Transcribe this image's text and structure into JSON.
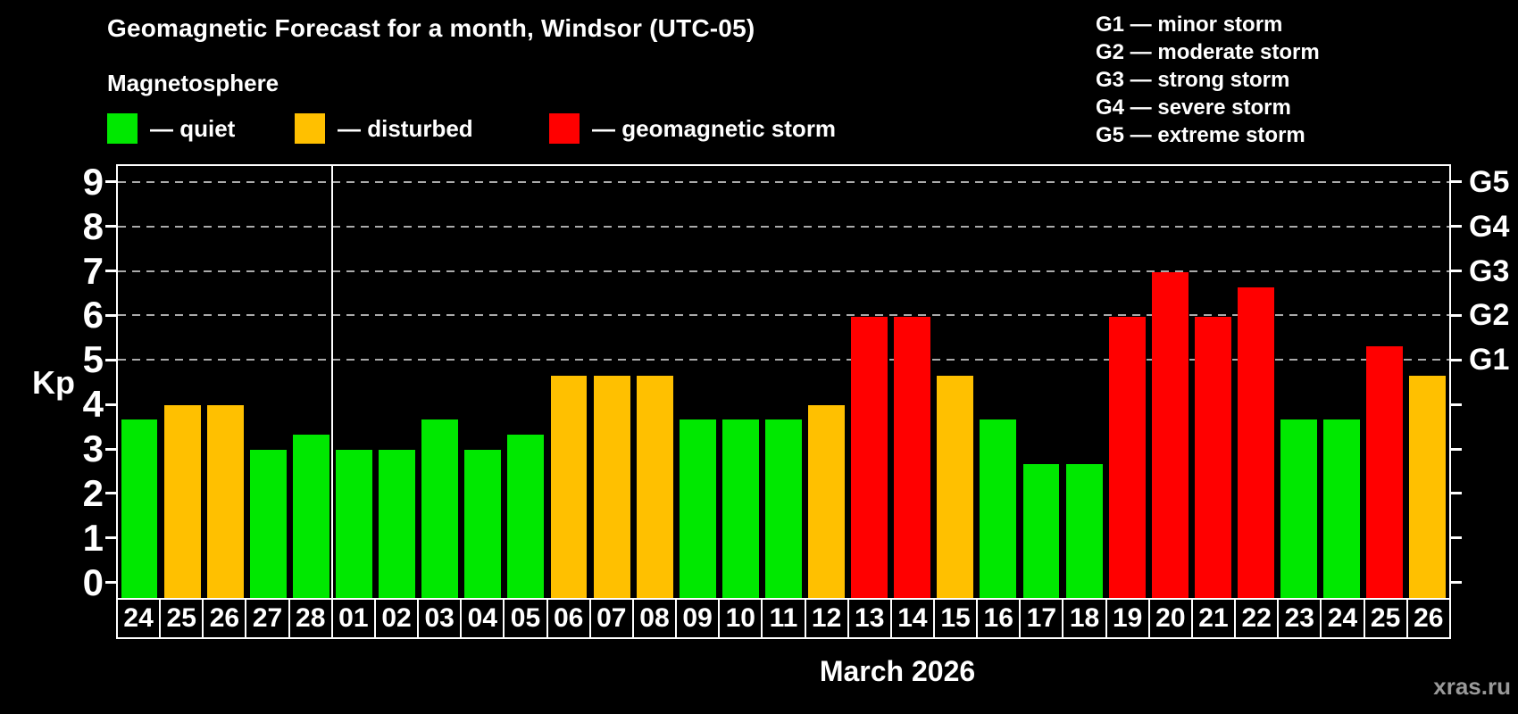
{
  "header": {
    "title": "Geomagnetic Forecast for a month, Windsor (UTC-05)",
    "subtitle": "Magnetosphere"
  },
  "legend": {
    "items": [
      {
        "name": "quiet",
        "label": "— quiet",
        "color": "#00e800"
      },
      {
        "name": "disturbed",
        "label": "— disturbed",
        "color": "#ffc000"
      },
      {
        "name": "storm",
        "label": "— geomagnetic storm",
        "color": "#ff0000"
      }
    ]
  },
  "storm_scale_legend": {
    "lines": [
      {
        "code": "G1",
        "text": "G1 — minor storm"
      },
      {
        "code": "G2",
        "text": "G2 — moderate storm"
      },
      {
        "code": "G3",
        "text": "G3 — strong storm"
      },
      {
        "code": "G4",
        "text": "G4 — severe storm"
      },
      {
        "code": "G5",
        "text": "G5 — extreme storm"
      }
    ]
  },
  "chart_data": {
    "type": "bar",
    "title": "Geomagnetic Forecast for a month, Windsor (UTC-05)",
    "ylabel": "Kp",
    "xlabel": "March 2026",
    "ylim": [
      0,
      9
    ],
    "y_ticks": [
      "0",
      "1",
      "2",
      "3",
      "4",
      "5",
      "6",
      "7",
      "8",
      "9"
    ],
    "gridlines_at": [
      5,
      6,
      7,
      8,
      9
    ],
    "grid": "dashed horizontal at Kp 5-9 only",
    "legend_position": "top-left",
    "right_axis_labels": [
      {
        "kp": 5,
        "label": "G1"
      },
      {
        "kp": 6,
        "label": "G2"
      },
      {
        "kp": 7,
        "label": "G3"
      },
      {
        "kp": 8,
        "label": "G4"
      },
      {
        "kp": 9,
        "label": "G5"
      }
    ],
    "month_separator_after_index": 4,
    "status_colors": {
      "quiet": "#00e800",
      "disturbed": "#ffc000",
      "storm": "#ff0000"
    },
    "bars": [
      {
        "day": "24",
        "kp": 3.67,
        "status": "quiet"
      },
      {
        "day": "25",
        "kp": 4.0,
        "status": "disturbed"
      },
      {
        "day": "26",
        "kp": 4.0,
        "status": "disturbed"
      },
      {
        "day": "27",
        "kp": 3.0,
        "status": "quiet"
      },
      {
        "day": "28",
        "kp": 3.33,
        "status": "quiet"
      },
      {
        "day": "01",
        "kp": 3.0,
        "status": "quiet"
      },
      {
        "day": "02",
        "kp": 3.0,
        "status": "quiet"
      },
      {
        "day": "03",
        "kp": 3.67,
        "status": "quiet"
      },
      {
        "day": "04",
        "kp": 3.0,
        "status": "quiet"
      },
      {
        "day": "05",
        "kp": 3.33,
        "status": "quiet"
      },
      {
        "day": "06",
        "kp": 4.67,
        "status": "disturbed"
      },
      {
        "day": "07",
        "kp": 4.67,
        "status": "disturbed"
      },
      {
        "day": "08",
        "kp": 4.67,
        "status": "disturbed"
      },
      {
        "day": "09",
        "kp": 3.67,
        "status": "quiet"
      },
      {
        "day": "10",
        "kp": 3.67,
        "status": "quiet"
      },
      {
        "day": "11",
        "kp": 3.67,
        "status": "quiet"
      },
      {
        "day": "12",
        "kp": 4.0,
        "status": "disturbed"
      },
      {
        "day": "13",
        "kp": 6.0,
        "status": "storm"
      },
      {
        "day": "14",
        "kp": 6.0,
        "status": "storm"
      },
      {
        "day": "15",
        "kp": 4.67,
        "status": "disturbed"
      },
      {
        "day": "16",
        "kp": 3.67,
        "status": "quiet"
      },
      {
        "day": "17",
        "kp": 2.67,
        "status": "quiet"
      },
      {
        "day": "18",
        "kp": 2.67,
        "status": "quiet"
      },
      {
        "day": "19",
        "kp": 6.0,
        "status": "storm"
      },
      {
        "day": "20",
        "kp": 7.0,
        "status": "storm"
      },
      {
        "day": "21",
        "kp": 6.0,
        "status": "storm"
      },
      {
        "day": "22",
        "kp": 6.67,
        "status": "storm"
      },
      {
        "day": "23",
        "kp": 3.67,
        "status": "quiet"
      },
      {
        "day": "24",
        "kp": 3.67,
        "status": "quiet"
      },
      {
        "day": "25",
        "kp": 5.33,
        "status": "storm"
      },
      {
        "day": "26",
        "kp": 4.67,
        "status": "disturbed"
      }
    ]
  },
  "footer": {
    "watermark": "xras.ru"
  }
}
